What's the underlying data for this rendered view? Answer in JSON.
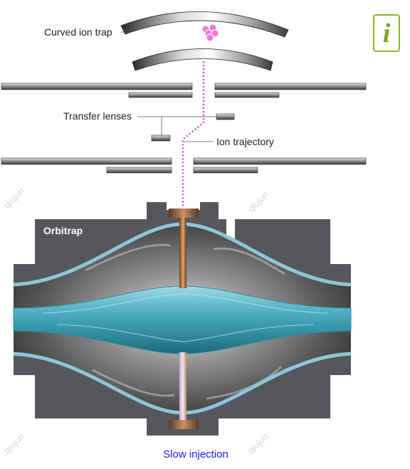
{
  "labels": {
    "curved_ion_trap": "Curved ion trap",
    "transfer_lenses": "Transfer lenses",
    "ion_trajectory": "Ion trajectory",
    "orbitrap": "Orbitrap",
    "slow_injection": "Slow injection"
  },
  "info_button": {
    "glyph": "i"
  },
  "watermark": "qiujun",
  "colors": {
    "ion_trajectory": "#e040e0",
    "ion_cluster": "#f07ad8",
    "orbitrap_body": "#55575c",
    "central_electrode": "#4aa8bc",
    "electrode_outline": "#8ec6d8",
    "injection_port": "#8a5a40",
    "info_accent": "#8bb62a",
    "caption_link": "#1a1adc"
  }
}
